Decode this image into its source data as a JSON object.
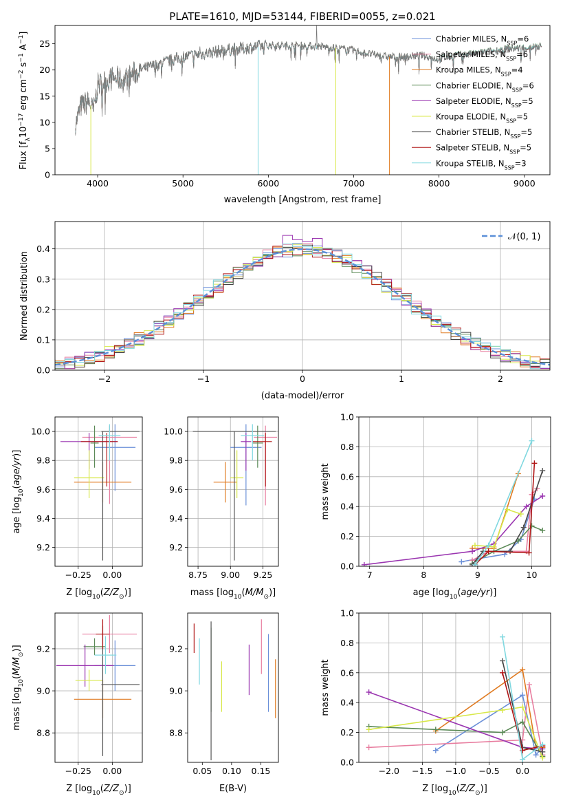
{
  "title": "PLATE=1610, MJD=53144, FIBERID=0055, z=0.021",
  "colors": [
    "#6a8fd8",
    "#e87d9f",
    "#e07a20",
    "#5b8a57",
    "#9a35b0",
    "#d8e84a",
    "#555555",
    "#b01515",
    "#80d8e0"
  ],
  "chart_data": [
    {
      "id": "spectrum",
      "type": "line",
      "title": "PLATE=1610, MJD=53144, FIBERID=0055, z=0.021",
      "xlabel": "wavelength [Angstrom, rest frame]",
      "ylabel": "Flux [f_λ 10^-17 erg cm^-2 s^-1 A^-1]",
      "xlim": [
        3500,
        9300
      ],
      "ylim": [
        0,
        28.5
      ],
      "xticks": [
        4000,
        5000,
        6000,
        7000,
        8000,
        9000
      ],
      "yticks": [
        0,
        5,
        10,
        15,
        20,
        25
      ],
      "legend_position": "top-right",
      "continuum": {
        "x": [
          3750,
          3800,
          3900,
          3950,
          4000,
          4100,
          4200,
          4300,
          4500,
          4800,
          5000,
          5200,
          5500,
          5800,
          6000,
          6300,
          6600,
          6800,
          7000,
          7200,
          7400,
          7600,
          7800,
          8000,
          8200,
          8400,
          8600,
          8800,
          9000,
          9200
        ],
        "y": [
          10,
          13,
          14,
          12,
          17,
          18,
          18.5,
          18,
          20,
          21.5,
          22.5,
          23,
          23.8,
          24.3,
          24.7,
          24.7,
          24.5,
          24.2,
          23.7,
          23,
          22.5,
          22.5,
          22.8,
          22,
          22.8,
          23,
          23.5,
          24,
          24.2,
          24.5
        ]
      },
      "series": [
        {
          "name": "Chabrier MILES, N_SSP=6"
        },
        {
          "name": "Salpeter MILES, N_SSP=6"
        },
        {
          "name": "Kroupa MILES, N_SSP=4"
        },
        {
          "name": "Chabrier ELODIE, N_SSP=6"
        },
        {
          "name": "Salpeter ELODIE, N_SSP=5"
        },
        {
          "name": "Kroupa ELODIE, N_SSP=5"
        },
        {
          "name": "Chabrier STELIB, N_SSP=5"
        },
        {
          "name": "Salpeter STELIB, N_SSP=5"
        },
        {
          "name": "Kroupa STELIB, N_SSP=3"
        }
      ]
    },
    {
      "id": "residuals",
      "type": "line",
      "xlabel": "(data-model)/error",
      "ylabel": "Normed distribution",
      "xlim": [
        -2.5,
        2.5
      ],
      "ylim": [
        0,
        0.49
      ],
      "xticks": [
        -2,
        -1,
        0,
        1,
        2
      ],
      "yticks": [
        0.0,
        0.1,
        0.2,
        0.3,
        0.4
      ],
      "grid": true,
      "legend_position": "top-right",
      "gaussian_label": "𝒩(0, 1)",
      "bin_width": 0.1,
      "note": "nine step histograms, one per model, following the unit normal"
    },
    {
      "id": "z-age",
      "type": "scatter",
      "xlabel": "Z [log10(Z/Z⊙)]",
      "ylabel": "age [log10(age/yr)]",
      "xlim": [
        -0.42,
        0.22
      ],
      "ylim": [
        9.07,
        10.1
      ],
      "xticks": [
        -0.25,
        0.0
      ],
      "yticks": [
        9.2,
        9.4,
        9.6,
        9.8,
        10.0
      ],
      "grid": true,
      "points": [
        {
          "x": 0.02,
          "y": 9.89,
          "xerr": [
            0.15,
            0.15
          ],
          "yerr": [
            0.3,
            0.16
          ]
        },
        {
          "x": -0.02,
          "y": 9.96,
          "xerr": [
            0.2,
            0.2
          ],
          "yerr": [
            0.46,
            0.08
          ]
        },
        {
          "x": -0.07,
          "y": 9.65,
          "xerr": [
            0.21,
            0.21
          ],
          "yerr": [
            0.14,
            0.14
          ]
        },
        {
          "x": -0.13,
          "y": 9.92,
          "xerr": [
            0.03,
            0.03
          ],
          "yerr": [
            0.17,
            0.12
          ]
        },
        {
          "x": -0.17,
          "y": 9.93,
          "xerr": [
            0.21,
            0.21
          ],
          "yerr": [
            0.19,
            0.06
          ]
        },
        {
          "x": -0.17,
          "y": 9.68,
          "xerr": [
            0.11,
            0.11
          ],
          "yerr": [
            0.14,
            0.19
          ]
        },
        {
          "x": -0.07,
          "y": 10.0,
          "xerr": [
            0.01,
            0.27
          ],
          "yerr": [
            0.89,
            0.0
          ]
        },
        {
          "x": -0.04,
          "y": 9.93,
          "xerr": [
            0.19,
            0.08
          ],
          "yerr": [
            0.31,
            0.06
          ]
        },
        {
          "x": -0.02,
          "y": 9.97,
          "xerr": [
            0.08,
            0.08
          ],
          "yerr": [
            0.17,
            0.08
          ]
        }
      ]
    },
    {
      "id": "mass-age",
      "type": "scatter",
      "xlabel": "mass [log10(M/M⊙)]",
      "ylabel": "",
      "xlim": [
        8.67,
        9.37
      ],
      "ylim": [
        9.07,
        10.1
      ],
      "xticks": [
        8.75,
        9.0,
        9.25
      ],
      "yticks": [
        9.2,
        9.4,
        9.6,
        9.8,
        10.0
      ],
      "grid": true,
      "points": [
        {
          "x": 9.12,
          "y": 9.89,
          "xerr": [
            0.12,
            0.12
          ],
          "yerr": [
            0.4,
            0.16
          ]
        },
        {
          "x": 9.27,
          "y": 9.96,
          "xerr": [
            0.09,
            0.09
          ],
          "yerr": [
            0.47,
            0.08
          ]
        },
        {
          "x": 8.96,
          "y": 9.65,
          "xerr": [
            0.09,
            0.09
          ],
          "yerr": [
            0.14,
            0.14
          ]
        },
        {
          "x": 9.21,
          "y": 9.92,
          "xerr": [
            0.04,
            0.04
          ],
          "yerr": [
            0.17,
            0.12
          ]
        },
        {
          "x": 9.12,
          "y": 9.93,
          "xerr": [
            0.04,
            0.04
          ],
          "yerr": [
            0.2,
            0.06
          ]
        },
        {
          "x": 9.05,
          "y": 9.68,
          "xerr": [
            0.05,
            0.05
          ],
          "yerr": [
            0.14,
            0.19
          ]
        },
        {
          "x": 9.03,
          "y": 10.0,
          "xerr": [
            0.32,
            0.32
          ],
          "yerr": [
            0.89,
            0.0
          ]
        },
        {
          "x": 9.27,
          "y": 9.93,
          "xerr": [
            0.1,
            0.05
          ],
          "yerr": [
            0.31,
            0.06
          ]
        },
        {
          "x": 9.17,
          "y": 9.97,
          "xerr": [
            0.09,
            0.09
          ],
          "yerr": [
            0.17,
            0.08
          ]
        }
      ]
    },
    {
      "id": "age-weight",
      "type": "line",
      "xlabel": "age [log10(age/yr)]",
      "ylabel": "mass weight",
      "xlim": [
        6.8,
        10.35
      ],
      "ylim": [
        0,
        1
      ],
      "xticks": [
        7,
        8,
        9,
        10
      ],
      "yticks": [
        0.0,
        0.2,
        0.4,
        0.6,
        0.8,
        1.0
      ],
      "grid": true,
      "series": [
        {
          "x": [
            8.7,
            9.0,
            9.5,
            9.8,
            10.05
          ],
          "y": [
            0.03,
            0.05,
            0.08,
            0.18,
            0.45
          ]
        },
        {
          "x": [
            8.9,
            9.2,
            9.9,
            10.0,
            10.1
          ],
          "y": [
            0.04,
            0.1,
            0.1,
            0.48,
            0.52
          ]
        },
        {
          "x": [
            8.9,
            9.3,
            9.75
          ],
          "y": [
            0.12,
            0.12,
            0.62
          ]
        },
        {
          "x": [
            8.9,
            9.3,
            9.75,
            10.0,
            10.2
          ],
          "y": [
            0.02,
            0.1,
            0.17,
            0.27,
            0.24
          ]
        },
        {
          "x": [
            6.9,
            8.9,
            9.3,
            9.9,
            10.2
          ],
          "y": [
            0.01,
            0.1,
            0.15,
            0.4,
            0.47
          ]
        },
        {
          "x": [
            8.95,
            9.3,
            9.55,
            9.8
          ],
          "y": [
            0.14,
            0.13,
            0.38,
            0.35
          ]
        },
        {
          "x": [
            8.9,
            9.1,
            9.6,
            9.85,
            10.2
          ],
          "y": [
            0.01,
            0.1,
            0.1,
            0.26,
            0.64
          ]
        },
        {
          "x": [
            8.95,
            9.2,
            9.95,
            10.05
          ],
          "y": [
            0.01,
            0.1,
            0.09,
            0.69
          ]
        },
        {
          "x": [
            8.95,
            9.2,
            10.0
          ],
          "y": [
            0.01,
            0.14,
            0.84
          ]
        }
      ]
    },
    {
      "id": "z-mass",
      "type": "scatter",
      "xlabel": "Z [log10(Z/Z⊙)]",
      "ylabel": "mass [log10(M/M⊙)]",
      "xlim": [
        -0.42,
        0.22
      ],
      "ylim": [
        8.66,
        9.37
      ],
      "xticks": [
        -0.25,
        0.0
      ],
      "yticks": [
        8.8,
        9.0,
        9.2
      ],
      "grid": true,
      "points": [
        {
          "x": 0.02,
          "y": 9.12,
          "xerr": [
            0.15,
            0.15
          ],
          "yerr": [
            0.12,
            0.12
          ]
        },
        {
          "x": -0.02,
          "y": 9.27,
          "xerr": [
            0.2,
            0.2
          ],
          "yerr": [
            0.09,
            0.09
          ]
        },
        {
          "x": -0.07,
          "y": 8.96,
          "xerr": [
            0.21,
            0.21
          ],
          "yerr": [
            0.09,
            0.09
          ]
        },
        {
          "x": -0.13,
          "y": 9.21,
          "xerr": [
            0.08,
            0.08
          ],
          "yerr": [
            0.04,
            0.04
          ]
        },
        {
          "x": -0.2,
          "y": 9.12,
          "xerr": [
            0.21,
            0.21
          ],
          "yerr": [
            0.1,
            0.1
          ]
        },
        {
          "x": -0.17,
          "y": 9.05,
          "xerr": [
            0.1,
            0.1
          ],
          "yerr": [
            0.05,
            0.05
          ]
        },
        {
          "x": -0.07,
          "y": 9.03,
          "xerr": [
            0.01,
            0.27
          ],
          "yerr": [
            0.34,
            0.28
          ]
        },
        {
          "x": -0.07,
          "y": 9.27,
          "xerr": [
            0.05,
            0.05
          ],
          "yerr": [
            0.07,
            0.07
          ]
        },
        {
          "x": -0.05,
          "y": 9.17,
          "xerr": [
            0.08,
            0.08
          ],
          "yerr": [
            0.09,
            0.09
          ]
        }
      ]
    },
    {
      "id": "ebv-mass",
      "type": "scatter",
      "xlabel": "E(B-V)",
      "ylabel": "",
      "xlim": [
        0.025,
        0.18
      ],
      "ylim": [
        8.66,
        9.37
      ],
      "xticks": [
        0.05,
        0.1,
        0.15
      ],
      "yticks": [
        8.8,
        9.0,
        9.2
      ],
      "grid": false,
      "points": [
        {
          "x": 0.163,
          "y": 9.12,
          "xerr": [
            0,
            0
          ],
          "yerr": [
            0.22,
            0.15
          ]
        },
        {
          "x": 0.151,
          "y": 9.2,
          "xerr": [
            0,
            0
          ],
          "yerr": [
            0.12,
            0.14
          ]
        },
        {
          "x": 0.175,
          "y": 9.01,
          "xerr": [
            0,
            0
          ],
          "yerr": [
            0.14,
            0.14
          ]
        },
        {
          "x": 0.065,
          "y": 9.1,
          "xerr": [
            0,
            0
          ],
          "yerr": [
            0.2,
            0.2
          ]
        },
        {
          "x": 0.13,
          "y": 9.1,
          "xerr": [
            0,
            0
          ],
          "yerr": [
            0.12,
            0.12
          ]
        },
        {
          "x": 0.083,
          "y": 9.02,
          "xerr": [
            0,
            0
          ],
          "yerr": [
            0.12,
            0.12
          ]
        },
        {
          "x": 0.065,
          "y": 9.0,
          "xerr": [
            0,
            0
          ],
          "yerr": [
            0.33,
            0.33
          ]
        },
        {
          "x": 0.036,
          "y": 9.25,
          "xerr": [
            0,
            0
          ],
          "yerr": [
            0.07,
            0.07
          ]
        },
        {
          "x": 0.045,
          "y": 9.14,
          "xerr": [
            0,
            0
          ],
          "yerr": [
            0.11,
            0.11
          ]
        }
      ]
    },
    {
      "id": "z-weight",
      "type": "line",
      "xlabel": "Z [log10(Z/Z⊙)]",
      "ylabel": "mass weight",
      "xlim": [
        -2.45,
        0.42
      ],
      "ylim": [
        0,
        1
      ],
      "xticks": [
        -2.0,
        -1.5,
        -1.0,
        -0.5,
        0.0
      ],
      "yticks": [
        0.0,
        0.2,
        0.4,
        0.6,
        0.8,
        1.0
      ],
      "grid": true,
      "series": [
        {
          "x": [
            -1.3,
            0.0,
            0.2,
            0.3
          ],
          "y": [
            0.08,
            0.45,
            0.05,
            0.1
          ]
        },
        {
          "x": [
            -2.3,
            0.0,
            0.1,
            0.3
          ],
          "y": [
            0.1,
            0.15,
            0.52,
            0.05
          ]
        },
        {
          "x": [
            -1.3,
            0.0,
            0.2,
            0.3
          ],
          "y": [
            0.21,
            0.62,
            0.1,
            0.1
          ]
        },
        {
          "x": [
            -2.3,
            -1.3,
            -0.3,
            0.0,
            0.3
          ],
          "y": [
            0.24,
            0.22,
            0.2,
            0.27,
            0.04
          ]
        },
        {
          "x": [
            -2.3,
            0.0,
            0.3
          ],
          "y": [
            0.47,
            0.1,
            0.09
          ]
        },
        {
          "x": [
            -2.3,
            -0.3,
            0.0,
            0.3
          ],
          "y": [
            0.22,
            0.35,
            0.37,
            0.03
          ]
        },
        {
          "x": [
            -0.3,
            0.0,
            0.3
          ],
          "y": [
            0.68,
            0.1,
            0.07
          ]
        },
        {
          "x": [
            -0.3,
            0.0,
            0.3
          ],
          "y": [
            0.6,
            0.08,
            0.11
          ]
        },
        {
          "x": [
            -0.3,
            0.0,
            0.3
          ],
          "y": [
            0.84,
            0.02,
            0.12
          ]
        }
      ]
    }
  ]
}
